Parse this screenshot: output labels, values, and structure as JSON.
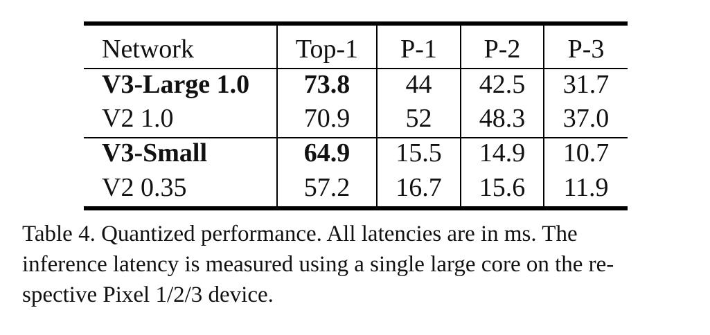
{
  "table": {
    "headers": [
      "Network",
      "Top-1",
      "P-1",
      "P-2",
      "P-3"
    ],
    "rows": [
      {
        "network": "V3-Large 1.0",
        "top1": "73.8",
        "p1": "44",
        "p2": "42.5",
        "p3": "31.7",
        "bold": true
      },
      {
        "network": "V2 1.0",
        "top1": "70.9",
        "p1": "52",
        "p2": "48.3",
        "p3": "37.0",
        "bold": false
      },
      {
        "network": "V3-Small",
        "top1": "64.9",
        "p1": "15.5",
        "p2": "14.9",
        "p3": "10.7",
        "bold": true
      },
      {
        "network": "V2 0.35",
        "top1": "57.2",
        "p1": "16.7",
        "p2": "15.6",
        "p3": "11.9",
        "bold": false
      }
    ]
  },
  "caption": {
    "line1": "Table 4. Quantized performance.  All latencies are in ms.  The",
    "line2": "inference latency is measured using a single large core on the re-",
    "line3": "spective Pixel 1/2/3 device."
  }
}
